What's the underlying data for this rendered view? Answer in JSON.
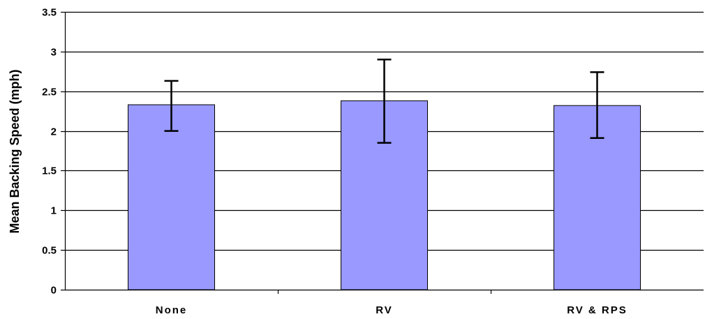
{
  "chart_data": {
    "type": "bar",
    "title": "",
    "xlabel": "",
    "ylabel": "Mean Backing Speed (mph)",
    "categories": [
      "None",
      "RV",
      "RV & RPS"
    ],
    "values": [
      2.33,
      2.38,
      2.32
    ],
    "error_low": [
      2.0,
      1.85,
      1.91
    ],
    "error_high": [
      2.63,
      2.9,
      2.74
    ],
    "ylim": [
      0,
      3.5
    ],
    "yticks": [
      0,
      0.5,
      1,
      1.5,
      2,
      2.5,
      3,
      3.5
    ],
    "ytick_labels": [
      "0",
      "0.5",
      "1",
      "1.5",
      "2",
      "2.5",
      "3",
      "3.5"
    ],
    "grid": "horizontal",
    "legend": "none",
    "colors": {
      "bar": "#9999ff",
      "bar_edge": "#000000",
      "grid": "#000000",
      "error_bar": "#000000"
    }
  }
}
